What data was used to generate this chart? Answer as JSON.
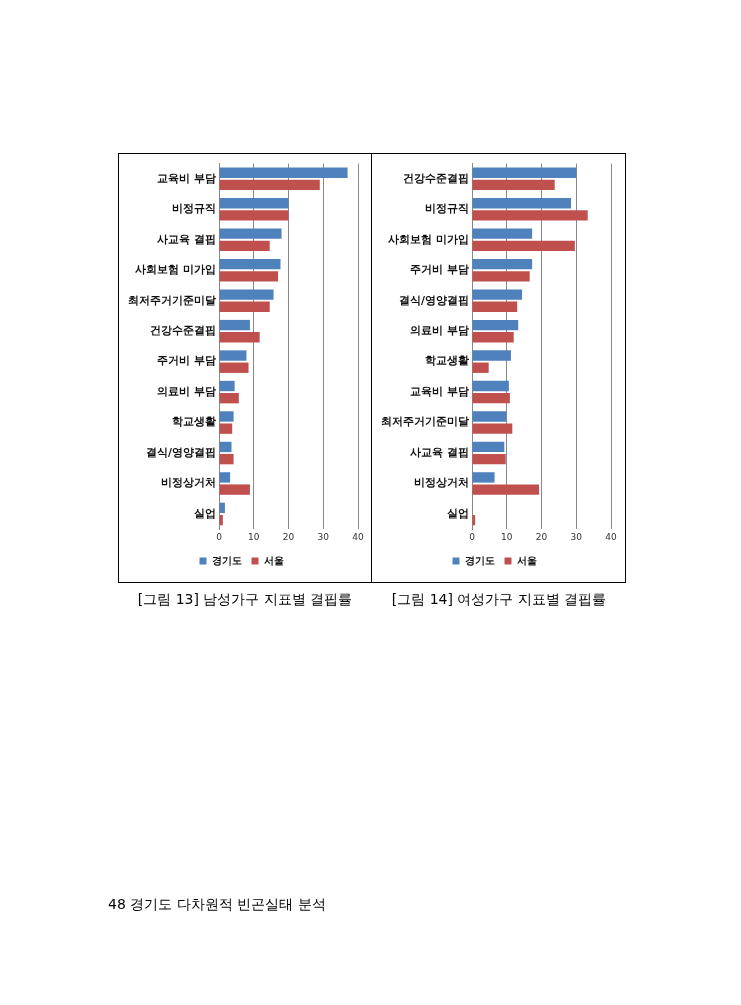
{
  "chart_data": [
    {
      "type": "bar",
      "orientation": "horizontal",
      "title": "[그림 13] 남성가구 지표별 결핍률",
      "categories": [
        "교육비 부담",
        "비정규직",
        "사교육 결핍",
        "사회보험 미가입",
        "최저주거기준미달",
        "건강수준결핍",
        "주거비 부담",
        "의료비 부담",
        "학교생활",
        "결식/영양결핍",
        "비정상거처",
        "실업"
      ],
      "series": [
        {
          "name": "경기도",
          "color": "#4f81bd",
          "values": [
            37,
            20,
            18,
            17.7,
            15.7,
            8.9,
            7.9,
            4.5,
            4.2,
            3.6,
            3.2,
            1.7
          ]
        },
        {
          "name": "서울",
          "color": "#c0504d",
          "values": [
            29,
            20,
            14.6,
            17,
            14.6,
            11.7,
            8.5,
            5.7,
            3.8,
            4.2,
            8.9,
            1.1
          ]
        }
      ],
      "xlim": [
        0,
        40
      ],
      "xticks": [
        0,
        10,
        20,
        30,
        40
      ],
      "grid": "x",
      "legend": "bottom",
      "annotations": [
        "48 경기도 다차원적 빈곤실태 분석"
      ]
    },
    {
      "type": "bar",
      "orientation": "horizontal",
      "title": "[그림 14] 여성가구 지표별 결핍률",
      "categories": [
        "건강수준결핍",
        "비정규직",
        "사회보험 미가입",
        "주거비 부담",
        "결식/영양결핍",
        "의료비 부담",
        "학교생활",
        "교육비 부담",
        "최저주거기준미달",
        "사교육 결핍",
        "비정상거처",
        "실업"
      ],
      "series": [
        {
          "name": "경기도",
          "color": "#4f81bd",
          "values": [
            30,
            28.5,
            17.3,
            17.3,
            14.4,
            13.3,
            11.2,
            10.6,
            9.9,
            9.3,
            6.5,
            0
          ]
        },
        {
          "name": "서울",
          "color": "#c0504d",
          "values": [
            23.8,
            33.3,
            29.6,
            16.6,
            13,
            12,
            4.8,
            10.9,
            11.6,
            9.7,
            19.3,
            0.9
          ]
        }
      ],
      "xlim": [
        0,
        40
      ],
      "xticks": [
        0,
        10,
        20,
        30,
        40
      ],
      "grid": "x",
      "legend": "bottom"
    }
  ]
}
